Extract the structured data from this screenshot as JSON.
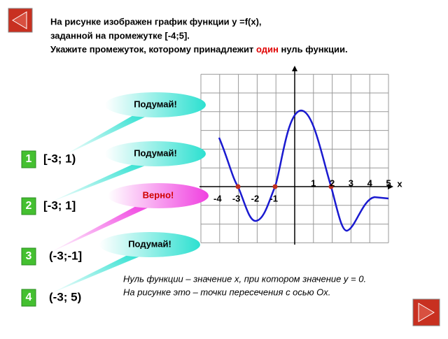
{
  "question": {
    "line1": "На рисунке изображен график функции y =f(x),",
    "line2": "заданной на промежутке [-4;5].",
    "line3_start": "Укажите промежуток, которому принадлежит ",
    "line3_highlight": "один",
    "line3_end": " нуль функции."
  },
  "options": [
    {
      "number": "1",
      "text": "[-3; 1)",
      "feedback": "Подумай!"
    },
    {
      "number": "2",
      "text": "[-3; 1]",
      "feedback": "Подумай!"
    },
    {
      "number": "3",
      "text": "(-3;-1]",
      "feedback": "Верно!"
    },
    {
      "number": "4",
      "text": "(-3; 5)",
      "feedback": "Подумай!"
    }
  ],
  "graph": {
    "x_labels_pos": [
      "1",
      "2",
      "3",
      "4",
      "5"
    ],
    "x_axis_name": "x",
    "x_labels_neg": [
      "-4",
      "-3",
      "-2",
      "-1"
    ]
  },
  "note": {
    "line1": "Нуль функции – значение x, при котором значение y = 0.",
    "line2": "На рисунке это – точки пересечения с осью Ox."
  }
}
